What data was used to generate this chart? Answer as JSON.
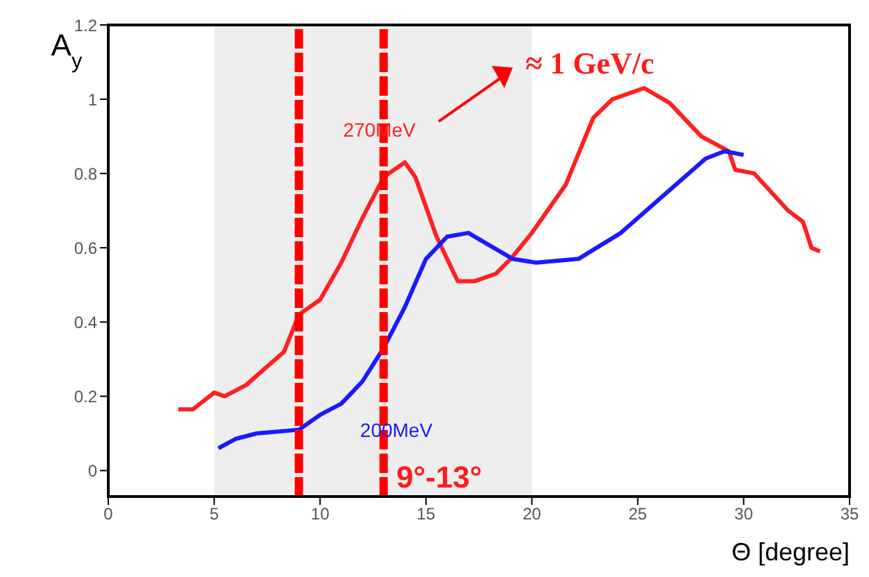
{
  "chart_data": {
    "type": "line",
    "xlabel": "Θ [degree]",
    "ylabel": "A$_{y}$",
    "xlim": [
      0,
      35
    ],
    "xticks": [
      0,
      5,
      10,
      15,
      20,
      25,
      30,
      35
    ],
    "ylim": [
      -0.07,
      1.2
    ],
    "yticks": [
      0,
      0.2,
      0.4,
      0.6,
      0.8,
      1,
      1.2
    ],
    "line_style": "solid",
    "marker": "none",
    "series": [
      {
        "name": "270MeV",
        "color": "#ff2020",
        "x": [
          3.3,
          4,
          5,
          5.5,
          6.5,
          7.5,
          8.3,
          9,
          10,
          11,
          12,
          13,
          14,
          14.5,
          15.5,
          16.5,
          17.3,
          18.3,
          19,
          20,
          21.6,
          22.9,
          23.8,
          25.3,
          26.5,
          28,
          29.3,
          29.6,
          30.5,
          32.1,
          32.8,
          33.2,
          33.6
        ],
        "values": [
          0.165,
          0.165,
          0.21,
          0.2,
          0.23,
          0.28,
          0.32,
          0.42,
          0.46,
          0.56,
          0.68,
          0.79,
          0.83,
          0.79,
          0.63,
          0.51,
          0.51,
          0.53,
          0.57,
          0.64,
          0.77,
          0.95,
          1.0,
          1.03,
          0.99,
          0.9,
          0.86,
          0.81,
          0.8,
          0.7,
          0.67,
          0.6,
          0.59
        ]
      },
      {
        "name": "200MeV",
        "color": "#1a1aff",
        "x": [
          5.2,
          6,
          7,
          9,
          10,
          11,
          11.5,
          12,
          13,
          14,
          15,
          16,
          17,
          19.1,
          20.2,
          22.2,
          24.2,
          26.2,
          28.2,
          29.1,
          30
        ],
        "values": [
          0.06,
          0.085,
          0.1,
          0.11,
          0.15,
          0.18,
          0.21,
          0.24,
          0.33,
          0.44,
          0.57,
          0.63,
          0.64,
          0.57,
          0.56,
          0.57,
          0.64,
          0.74,
          0.84,
          0.86,
          0.85
        ]
      }
    ],
    "ref_lines": [
      {
        "axis": "x",
        "value": 9,
        "color": "#ff0000",
        "line_style": "dashed"
      },
      {
        "axis": "x",
        "value": 13,
        "color": "#ff0000",
        "line_style": "dashed"
      }
    ],
    "bands": [
      {
        "axis": "x",
        "from": 5,
        "to": 20,
        "color": "#eeeeee"
      }
    ],
    "annotations": [
      "≈ 1 GeV/c",
      "9°-13°"
    ]
  }
}
